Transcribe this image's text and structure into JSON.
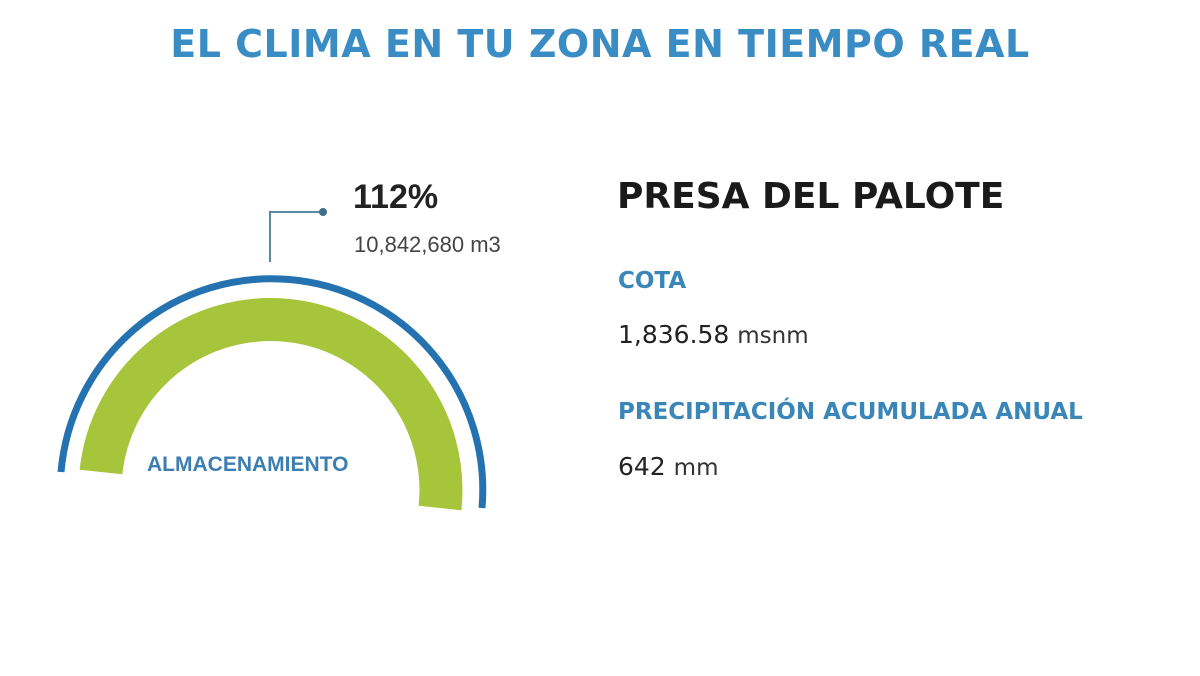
{
  "header": {
    "title": "EL CLIMA EN TU ZONA EN TIEMPO REAL"
  },
  "gauge": {
    "percent_label": "112%",
    "percent_value": 112,
    "volume": "10,842,680 m3",
    "label": "ALMACENAMIENTO",
    "colors": {
      "arc": "#2472b0",
      "fill": "#a6c53a"
    }
  },
  "dam": {
    "name": "PRESA DEL PALOTE",
    "cota": {
      "label": "COTA",
      "value": "1,836.58",
      "unit": "msnm"
    },
    "precip": {
      "label": "PRECIPITACIÓN ACUMULADA ANUAL",
      "value": "642",
      "unit": "mm"
    }
  }
}
